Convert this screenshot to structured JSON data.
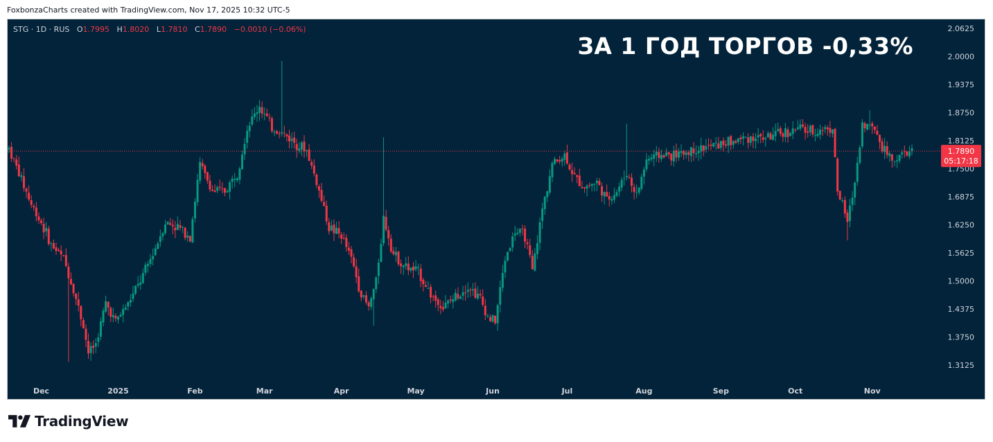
{
  "attribution": "FoxbonzaCharts created with TradingView.com, Nov 17, 2025 10:32 UTC-5",
  "legend": {
    "symbol": "STG · 1D · RUS",
    "o_label": "O",
    "o_value": "1.7995",
    "h_label": "H",
    "h_value": "1.8020",
    "l_label": "L",
    "l_value": "1.7810",
    "c_label": "C",
    "c_value": "1.7890",
    "change": "−0.0010 (−0.06%)"
  },
  "headline": "ЗА 1 ГОД ТОРГОВ -0,33%",
  "price_badge": {
    "price": "1.7890",
    "countdown": "05:17:18"
  },
  "footer": {
    "brand": "TradingView",
    "logo_icon": "tradingview-logo-icon"
  },
  "colors": {
    "background": "#03233a",
    "up": "#089981",
    "down": "#f23645",
    "text": "#d1d4dc"
  },
  "chart_data": {
    "type": "candlestick",
    "title": "",
    "ylim": [
      1.28,
      2.07
    ],
    "y_ticks": [
      "2.0625",
      "2.0000",
      "1.9375",
      "1.8750",
      "1.8125",
      "1.7500",
      "1.6875",
      "1.6250",
      "1.5625",
      "1.5000",
      "1.4375",
      "1.3750",
      "1.3125"
    ],
    "x_start": "2024-11-18",
    "x_end": "2025-11-17",
    "x_ticks": [
      {
        "label": "Dec",
        "date": "2024-12-01"
      },
      {
        "label": "2025",
        "date": "2025-01-01"
      },
      {
        "label": "Feb",
        "date": "2025-02-01"
      },
      {
        "label": "Mar",
        "date": "2025-03-01"
      },
      {
        "label": "Apr",
        "date": "2025-04-01"
      },
      {
        "label": "May",
        "date": "2025-05-01"
      },
      {
        "label": "Jun",
        "date": "2025-06-01"
      },
      {
        "label": "Jul",
        "date": "2025-07-01"
      },
      {
        "label": "Aug",
        "date": "2025-08-01"
      },
      {
        "label": "Sep",
        "date": "2025-09-01"
      },
      {
        "label": "Oct",
        "date": "2025-10-01"
      },
      {
        "label": "Nov",
        "date": "2025-11-01"
      }
    ],
    "last_price": 1.789,
    "close_path": [
      [
        "2024-11-18",
        1.795
      ],
      [
        "2024-11-22",
        1.74
      ],
      [
        "2024-11-27",
        1.67
      ],
      [
        "2024-12-01",
        1.63
      ],
      [
        "2024-12-05",
        1.58
      ],
      [
        "2024-12-10",
        1.55
      ],
      [
        "2024-12-14",
        1.48
      ],
      [
        "2024-12-18",
        1.4
      ],
      [
        "2024-12-20",
        1.34
      ],
      [
        "2024-12-23",
        1.36
      ],
      [
        "2024-12-27",
        1.45
      ],
      [
        "2024-12-31",
        1.41
      ],
      [
        "2025-01-05",
        1.45
      ],
      [
        "2025-01-10",
        1.5
      ],
      [
        "2025-01-15",
        1.56
      ],
      [
        "2025-01-20",
        1.63
      ],
      [
        "2025-01-25",
        1.62
      ],
      [
        "2025-01-30",
        1.6
      ],
      [
        "2025-02-03",
        1.76
      ],
      [
        "2025-02-08",
        1.7
      ],
      [
        "2025-02-13",
        1.7
      ],
      [
        "2025-02-18",
        1.74
      ],
      [
        "2025-02-22",
        1.84
      ],
      [
        "2025-02-27",
        1.89
      ],
      [
        "2025-03-04",
        1.84
      ],
      [
        "2025-03-08",
        1.83
      ],
      [
        "2025-03-13",
        1.81
      ],
      [
        "2025-03-18",
        1.79
      ],
      [
        "2025-03-22",
        1.72
      ],
      [
        "2025-03-27",
        1.62
      ],
      [
        "2025-04-01",
        1.6
      ],
      [
        "2025-04-05",
        1.55
      ],
      [
        "2025-04-09",
        1.47
      ],
      [
        "2025-04-12",
        1.44
      ],
      [
        "2025-04-15",
        1.5
      ],
      [
        "2025-04-18",
        1.64
      ],
      [
        "2025-04-22",
        1.56
      ],
      [
        "2025-04-27",
        1.53
      ],
      [
        "2025-05-02",
        1.52
      ],
      [
        "2025-05-07",
        1.47
      ],
      [
        "2025-05-12",
        1.44
      ],
      [
        "2025-05-18",
        1.47
      ],
      [
        "2025-05-22",
        1.49
      ],
      [
        "2025-05-27",
        1.46
      ],
      [
        "2025-05-30",
        1.42
      ],
      [
        "2025-06-02",
        1.41
      ],
      [
        "2025-06-06",
        1.55
      ],
      [
        "2025-06-10",
        1.61
      ],
      [
        "2025-06-14",
        1.6
      ],
      [
        "2025-06-17",
        1.52
      ],
      [
        "2025-06-21",
        1.66
      ],
      [
        "2025-06-25",
        1.76
      ],
      [
        "2025-06-30",
        1.78
      ],
      [
        "2025-07-04",
        1.73
      ],
      [
        "2025-07-08",
        1.71
      ],
      [
        "2025-07-13",
        1.72
      ],
      [
        "2025-07-17",
        1.68
      ],
      [
        "2025-07-21",
        1.7
      ],
      [
        "2025-07-25",
        1.74
      ],
      [
        "2025-07-29",
        1.69
      ],
      [
        "2025-08-02",
        1.77
      ],
      [
        "2025-08-07",
        1.78
      ],
      [
        "2025-08-14",
        1.78
      ],
      [
        "2025-08-20",
        1.79
      ],
      [
        "2025-08-28",
        1.8
      ],
      [
        "2025-09-05",
        1.81
      ],
      [
        "2025-09-12",
        1.82
      ],
      [
        "2025-09-20",
        1.82
      ],
      [
        "2025-09-27",
        1.83
      ],
      [
        "2025-10-03",
        1.84
      ],
      [
        "2025-10-08",
        1.83
      ],
      [
        "2025-10-13",
        1.84
      ],
      [
        "2025-10-16",
        1.84
      ],
      [
        "2025-10-18",
        1.7
      ],
      [
        "2025-10-20",
        1.67
      ],
      [
        "2025-10-22",
        1.63
      ],
      [
        "2025-10-25",
        1.72
      ],
      [
        "2025-10-28",
        1.85
      ],
      [
        "2025-11-02",
        1.84
      ],
      [
        "2025-11-05",
        1.8
      ],
      [
        "2025-11-09",
        1.77
      ],
      [
        "2025-11-13",
        1.78
      ],
      [
        "2025-11-17",
        1.789
      ]
    ],
    "wicks": [
      {
        "date": "2024-12-12",
        "low": 1.32
      },
      {
        "date": "2025-03-08",
        "high": 1.99
      },
      {
        "date": "2025-04-18",
        "high": 1.82
      },
      {
        "date": "2025-04-14",
        "low": 1.4
      },
      {
        "date": "2025-07-25",
        "high": 1.85
      },
      {
        "date": "2025-10-22",
        "low": 1.59
      },
      {
        "date": "2025-10-31",
        "high": 1.88
      }
    ]
  }
}
